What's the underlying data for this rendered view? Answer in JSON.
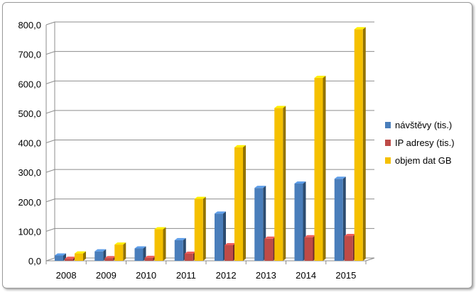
{
  "chart_data": {
    "type": "bar",
    "title": "",
    "xlabel": "",
    "ylabel": "",
    "categories": [
      "2008",
      "2009",
      "2010",
      "2011",
      "2012",
      "2013",
      "2014",
      "2015"
    ],
    "ylim": [
      0,
      800
    ],
    "yticks": [
      "0,0",
      "100,0",
      "200,0",
      "300,0",
      "400,0",
      "500,0",
      "600,0",
      "700,0",
      "800,0"
    ],
    "grid": true,
    "legend_position": "right",
    "series": [
      {
        "name": "návštěvy (tis.)",
        "color": "#4a7ebb",
        "values": [
          18,
          32,
          42,
          70,
          160,
          247,
          262,
          278
        ]
      },
      {
        "name": "IP adresy (tis.)",
        "color": "#be4b48",
        "values": [
          7,
          9,
          10,
          24,
          53,
          75,
          80,
          84
        ]
      },
      {
        "name": "objem dat GB",
        "color": "#f5c000",
        "values": [
          25,
          55,
          107,
          210,
          385,
          518,
          620,
          785
        ]
      }
    ]
  }
}
